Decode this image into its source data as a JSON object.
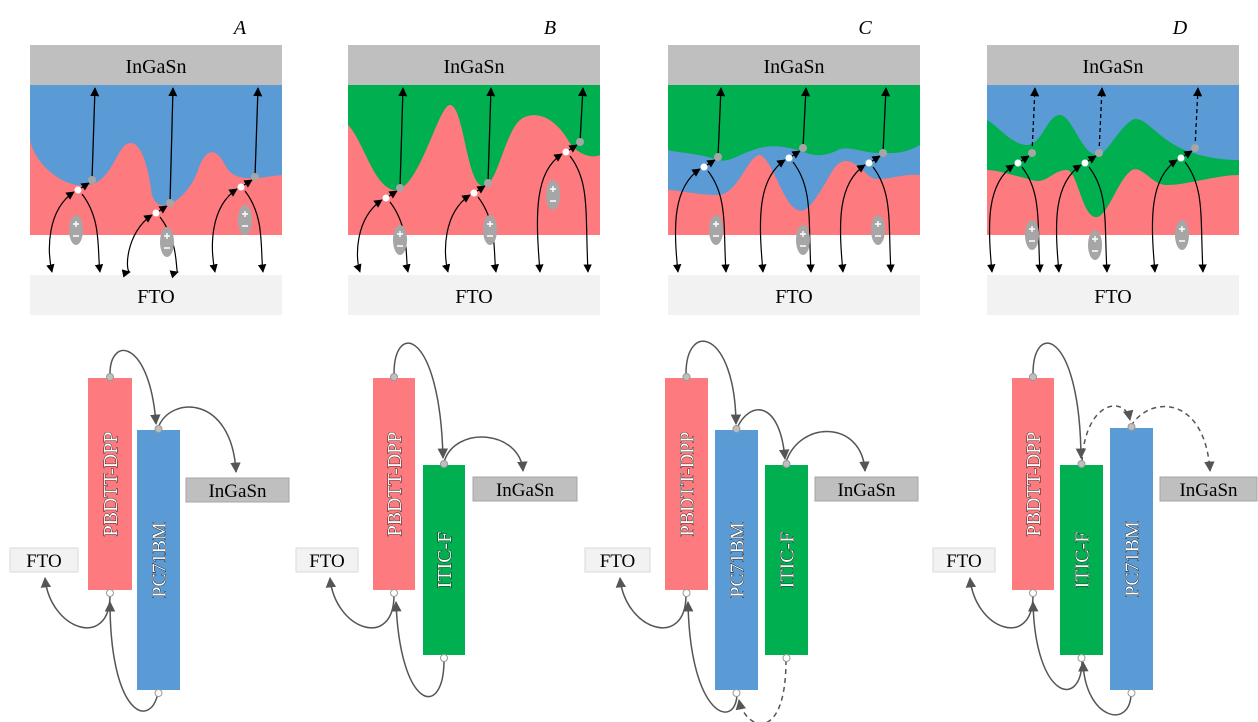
{
  "panels": [
    {
      "label": "A",
      "top_electrode": "InGaSn",
      "bottom_electrode": "FTO",
      "levels": [
        "PBDTT-DPP",
        "PC71BM"
      ],
      "contact_top": "InGaSn",
      "contact_bottom": "FTO"
    },
    {
      "label": "B",
      "top_electrode": "InGaSn",
      "bottom_electrode": "FTO",
      "levels": [
        "PBDTT-DPP",
        "ITIC-F"
      ],
      "contact_top": "InGaSn",
      "contact_bottom": "FTO"
    },
    {
      "label": "C",
      "top_electrode": "InGaSn",
      "bottom_electrode": "FTO",
      "levels": [
        "PBDTT-DPP",
        "PC71BM",
        "ITIC-F"
      ],
      "contact_top": "InGaSn",
      "contact_bottom": "FTO"
    },
    {
      "label": "D",
      "top_electrode": "InGaSn",
      "bottom_electrode": "FTO",
      "levels": [
        "PBDTT-DPP",
        "ITIC-F",
        "PC71BM"
      ],
      "contact_top": "InGaSn",
      "contact_bottom": "FTO"
    }
  ]
}
